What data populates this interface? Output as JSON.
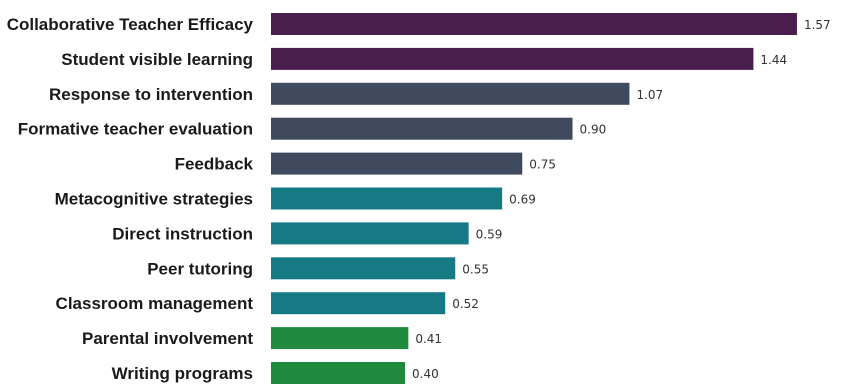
{
  "chart_data": {
    "type": "bar",
    "orientation": "horizontal",
    "title": "",
    "xlabel": "",
    "ylabel": "",
    "xlim": [
      0,
      1.6
    ],
    "grid": false,
    "legend": "none",
    "categories": [
      "Collaborative Teacher Efficacy",
      "Student visible learning",
      "Response to intervention",
      "Formative teacher evaluation",
      "Feedback",
      "Metacognitive strategies",
      "Direct instruction",
      "Peer tutoring",
      "Classroom management",
      "Parental involvement",
      "Writing programs"
    ],
    "values": [
      1.57,
      1.44,
      1.07,
      0.9,
      0.75,
      0.69,
      0.59,
      0.55,
      0.52,
      0.41,
      0.4
    ],
    "value_labels": [
      "1.57",
      "1.44",
      "1.07",
      "0.90",
      "0.75",
      "0.69",
      "0.59",
      "0.55",
      "0.52",
      "0.41",
      "0.40"
    ],
    "bar_colors": [
      "#4a1d4f",
      "#4a1d4f",
      "#3f4a5f",
      "#3f4a5f",
      "#3f4a5f",
      "#167a85",
      "#167a85",
      "#167a85",
      "#167a85",
      "#1f8a3d",
      "#1f8a3d"
    ]
  }
}
